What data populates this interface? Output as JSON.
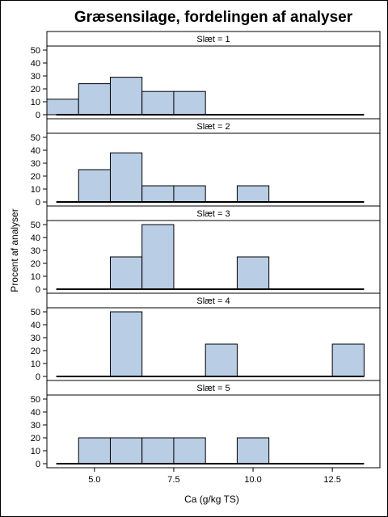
{
  "chart_data": {
    "type": "bar",
    "title": "Græsensilage, fordelingen af analyser",
    "xlabel": "Ca (g/kg TS)",
    "ylabel": "Procent af analyser",
    "xlim": [
      3.5,
      14.0
    ],
    "ylim": [
      0,
      55
    ],
    "x_ticks": [
      5.0,
      7.5,
      10.0,
      12.5
    ],
    "x_tick_labels": [
      "5.0",
      "7.5",
      "10.0",
      "12.5"
    ],
    "y_ticks": [
      0,
      10,
      20,
      30,
      40,
      50
    ],
    "y_tick_labels": [
      "0",
      "10",
      "20",
      "30",
      "40",
      "50"
    ],
    "bin_width": 1,
    "bar_color": "#b9cde5",
    "bar_stroke": "#000000",
    "panels": [
      {
        "label": "Slæt = 1",
        "bins": [
          {
            "x": 4,
            "value": 12
          },
          {
            "x": 5,
            "value": 24
          },
          {
            "x": 6,
            "value": 29
          },
          {
            "x": 7,
            "value": 18
          },
          {
            "x": 8,
            "value": 18
          }
        ]
      },
      {
        "label": "Slæt = 2",
        "bins": [
          {
            "x": 5,
            "value": 25
          },
          {
            "x": 6,
            "value": 38
          },
          {
            "x": 7,
            "value": 12.5
          },
          {
            "x": 8,
            "value": 12.5
          },
          {
            "x": 10,
            "value": 12.5
          }
        ]
      },
      {
        "label": "Slæt = 3",
        "bins": [
          {
            "x": 6,
            "value": 25
          },
          {
            "x": 7,
            "value": 50
          },
          {
            "x": 10,
            "value": 25
          }
        ]
      },
      {
        "label": "Slæt = 4",
        "bins": [
          {
            "x": 6,
            "value": 50
          },
          {
            "x": 9,
            "value": 25
          },
          {
            "x": 13,
            "value": 25
          }
        ]
      },
      {
        "label": "Slæt = 5",
        "bins": [
          {
            "x": 5,
            "value": 20
          },
          {
            "x": 6,
            "value": 20
          },
          {
            "x": 7,
            "value": 20
          },
          {
            "x": 8,
            "value": 20
          },
          {
            "x": 10,
            "value": 20
          }
        ]
      }
    ]
  }
}
